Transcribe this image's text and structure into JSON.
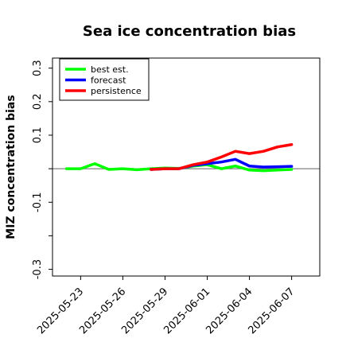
{
  "chart_data": {
    "type": "line",
    "title": "Sea ice concentration bias",
    "xlabel": "",
    "ylabel": "MIZ concentration bias",
    "ylim": [
      -0.32,
      0.33
    ],
    "y_ticks": [
      -0.3,
      -0.2,
      -0.1,
      0.0,
      0.1,
      0.2,
      0.3
    ],
    "y_tick_labels": [
      "-0.3",
      "",
      "-0.1",
      "",
      "0.1",
      "0.2",
      "0.3"
    ],
    "x_ticks": [
      "2025-05-23",
      "2025-05-26",
      "2025-05-29",
      "2025-06-01",
      "2025-06-04",
      "2025-06-07"
    ],
    "x_tick_labels": [
      "2025-05-23",
      "2025-05-26",
      "2025-05-29",
      "2025-06-01",
      "2025-06-04",
      "2025-06-07"
    ],
    "x_range": [
      "2025-05-21",
      "2025-06-09"
    ],
    "highlight_tick": "2025-05-29",
    "highlight_color": "#228B22",
    "grid": false,
    "zero_line": true,
    "legend_position": "top-left",
    "series": [
      {
        "name": "best est.",
        "color": "#00ff00",
        "x": [
          "2025-05-22",
          "2025-05-23",
          "2025-05-24",
          "2025-05-25",
          "2025-05-26",
          "2025-05-27",
          "2025-05-28",
          "2025-05-29",
          "2025-05-30",
          "2025-05-31",
          "2025-06-01",
          "2025-06-02",
          "2025-06-03",
          "2025-06-04",
          "2025-06-05",
          "2025-06-06",
          "2025-06-07"
        ],
        "values": [
          0.0,
          0.0,
          0.015,
          -0.002,
          0.0,
          -0.003,
          0.0,
          0.002,
          0.001,
          0.008,
          0.012,
          0.0,
          0.008,
          -0.004,
          -0.006,
          -0.004,
          -0.002
        ]
      },
      {
        "name": "forecast",
        "color": "#0000ff",
        "x": [
          "2025-05-28",
          "2025-05-29",
          "2025-05-30",
          "2025-05-31",
          "2025-06-01",
          "2025-06-02",
          "2025-06-03",
          "2025-06-04",
          "2025-06-05",
          "2025-06-06",
          "2025-06-07"
        ],
        "values": [
          -0.002,
          0.0,
          0.0,
          0.01,
          0.015,
          0.02,
          0.028,
          0.008,
          0.005,
          0.006,
          0.007
        ]
      },
      {
        "name": "persistence",
        "color": "#ff0000",
        "x": [
          "2025-05-28",
          "2025-05-29",
          "2025-05-30",
          "2025-05-31",
          "2025-06-01",
          "2025-06-02",
          "2025-06-03",
          "2025-06-04",
          "2025-06-05",
          "2025-06-06",
          "2025-06-07"
        ],
        "values": [
          -0.002,
          0.0,
          0.0,
          0.012,
          0.02,
          0.035,
          0.052,
          0.045,
          0.052,
          0.065,
          0.072
        ]
      }
    ]
  }
}
